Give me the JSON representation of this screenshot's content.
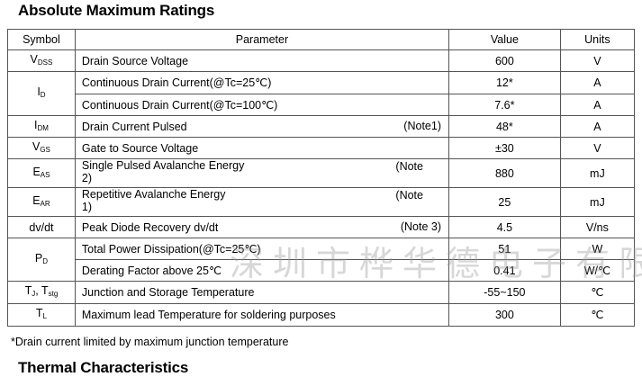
{
  "title": "Absolute Maximum Ratings",
  "headers": {
    "symbol": "Symbol",
    "parameter": "Parameter",
    "value": "Value",
    "units": "Units"
  },
  "rows": [
    {
      "sym": "V",
      "sub": "DSS",
      "param": "Drain Source Voltage",
      "note": "",
      "value": "600",
      "unit": "V"
    },
    {
      "sym": "I",
      "sub": "D",
      "param": "Continuous Drain Current(@Tc=25℃)",
      "note": "",
      "value": "12*",
      "unit": "A"
    },
    {
      "param": "Continuous Drain Current(@Tc=100℃)",
      "value": "7.6*",
      "unit": "A"
    },
    {
      "sym": "I",
      "sub": "DM",
      "param": "Drain Current Pulsed",
      "note": "(Note1)",
      "value": "48*",
      "unit": "A"
    },
    {
      "sym": "V",
      "sub": "GS",
      "param": "Gate to Source Voltage",
      "note": "",
      "value": "±30",
      "unit": "V"
    },
    {
      "sym": "E",
      "sub": "AS",
      "param": "Single Pulsed Avalanche Energy",
      "note": "(Note",
      "note2": "2)",
      "value": "880",
      "unit": "mJ"
    },
    {
      "sym": "E",
      "sub": "AR",
      "param": "Repetitive Avalanche Energy",
      "note": "(Note",
      "note2": "1)",
      "value": "25",
      "unit": "mJ"
    },
    {
      "sym": "dv/dt",
      "param": "Peak Diode Recovery dv/dt",
      "note": "(Note 3)",
      "value": "4.5",
      "unit": "V/ns"
    },
    {
      "sym": "P",
      "sub": "D",
      "param": "Total Power Dissipation(@Tc=25℃)",
      "value": "51",
      "unit": "W"
    },
    {
      "param": "Derating Factor above 25℃",
      "value": "0.41",
      "unit": "W/℃"
    },
    {
      "sym": "T",
      "sub": "J",
      "sym2": ", T",
      "sub2": "stg",
      "param": "Junction and Storage Temperature",
      "value": "-55~150",
      "unit": "℃"
    },
    {
      "sym": "T",
      "sub": "L",
      "param": "Maximum lead Temperature for soldering purposes",
      "value": "300",
      "unit": "℃"
    }
  ],
  "footnote": "*Drain current limited by maximum junction temperature",
  "watermark": "深圳市桦华德电子有限公司",
  "next_section": "Thermal Characteristics"
}
